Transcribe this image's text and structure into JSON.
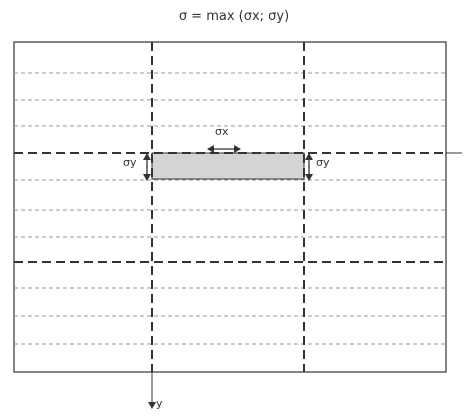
{
  "title": "σ = max (σx; σy)",
  "labels": {
    "sigma_x": "σx",
    "sigma_y_left": "σy",
    "sigma_y_right": "σy",
    "y_axis": "y"
  },
  "colors": {
    "stroke": "#333333",
    "thin_dash": "#9a9a9a",
    "band_fill": "#d4d4d4"
  }
}
